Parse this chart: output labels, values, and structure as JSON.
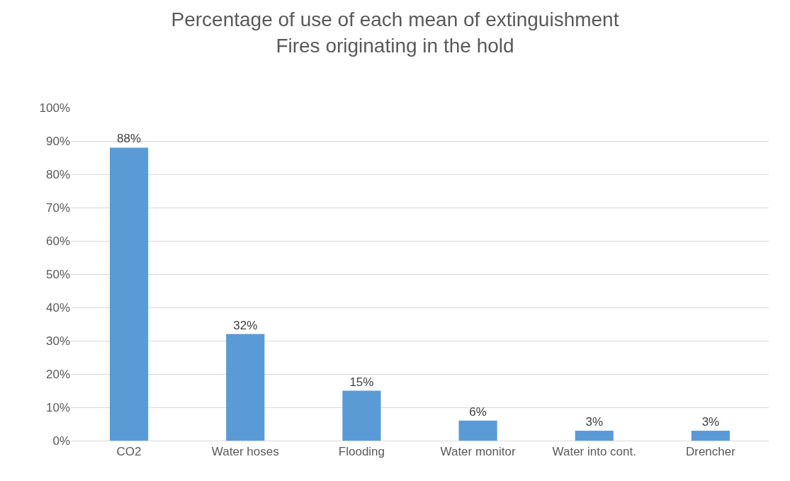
{
  "chart_data": {
    "type": "bar",
    "title": "Percentage of use of each mean of extinguishment\nFires originating in the hold",
    "categories": [
      "CO2",
      "Water hoses",
      "Flooding",
      "Water monitor",
      "Water into cont.",
      "Drencher"
    ],
    "values": [
      88,
      32,
      15,
      6,
      3,
      3
    ],
    "color": "#5b9bd5",
    "value_labels": [
      "88%",
      "32%",
      "15%",
      "6%",
      "3%",
      "3%"
    ],
    "ylim": [
      0,
      100
    ],
    "yticks": [
      {
        "value": 0,
        "label": "0%"
      },
      {
        "value": 10,
        "label": "10%"
      },
      {
        "value": 20,
        "label": "20%"
      },
      {
        "value": 30,
        "label": "30%"
      },
      {
        "value": 40,
        "label": "40%"
      },
      {
        "value": 50,
        "label": "50%"
      },
      {
        "value": 60,
        "label": "60%"
      },
      {
        "value": 70,
        "label": "70%"
      },
      {
        "value": 80,
        "label": "80%"
      },
      {
        "value": 90,
        "label": "90%"
      },
      {
        "value": 100,
        "label": "100%"
      }
    ],
    "grid": "y"
  }
}
